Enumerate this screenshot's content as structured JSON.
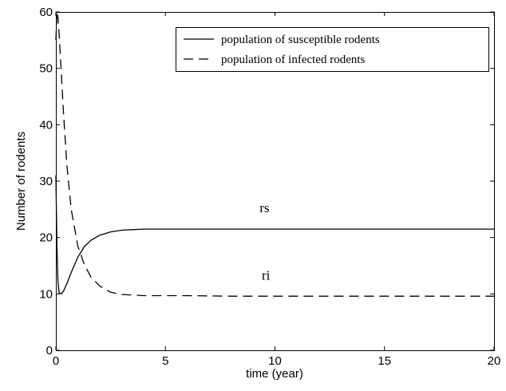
{
  "chart_data": {
    "type": "line",
    "title": "",
    "xlabel": "time (year)",
    "ylabel": "Number of rodents",
    "xlim": [
      0,
      20
    ],
    "ylim": [
      0,
      60
    ],
    "xticks": [
      0,
      5,
      10,
      15,
      20
    ],
    "yticks": [
      0,
      10,
      20,
      30,
      40,
      50,
      60
    ],
    "grid": false,
    "legend_position": "top-right",
    "series": [
      {
        "name": "population of susceptible rodents",
        "style": "solid",
        "color": "#000000",
        "x": [
          0,
          0.05,
          0.1,
          0.15,
          0.25,
          0.35,
          0.5,
          0.7,
          1.0,
          1.3,
          1.6,
          2.0,
          2.5,
          3.0,
          3.5,
          4.0,
          5.0,
          6.0,
          8.0,
          10.0,
          12.0,
          14.0,
          16.0,
          18.0,
          20.0
        ],
        "values": [
          31,
          18,
          12,
          10.2,
          10.0,
          10.5,
          11.8,
          13.8,
          16.5,
          18.4,
          19.5,
          20.4,
          21.0,
          21.3,
          21.4,
          21.5,
          21.5,
          21.5,
          21.5,
          21.5,
          21.5,
          21.5,
          21.5,
          21.5,
          21.5
        ]
      },
      {
        "name": "population of infected rodents",
        "style": "dashed",
        "color": "#000000",
        "x": [
          0,
          0.05,
          0.1,
          0.15,
          0.25,
          0.35,
          0.5,
          0.7,
          1.0,
          1.3,
          1.6,
          2.0,
          2.5,
          3.0,
          3.5,
          4.0,
          5.0,
          6.0,
          8.0,
          10.0,
          12.0,
          14.0,
          16.0,
          18.0,
          20.0
        ],
        "values": [
          55,
          60,
          59,
          56,
          49,
          42,
          33,
          25,
          18.5,
          15.2,
          13.0,
          11.4,
          10.3,
          9.9,
          9.8,
          9.7,
          9.7,
          9.7,
          9.6,
          9.6,
          9.6,
          9.6,
          9.6,
          9.6,
          9.6
        ]
      }
    ],
    "annotations": [
      {
        "text": "rs",
        "x": 9.3,
        "y": 24.5
      },
      {
        "text": "ri",
        "x": 9.4,
        "y": 12.5
      }
    ]
  }
}
